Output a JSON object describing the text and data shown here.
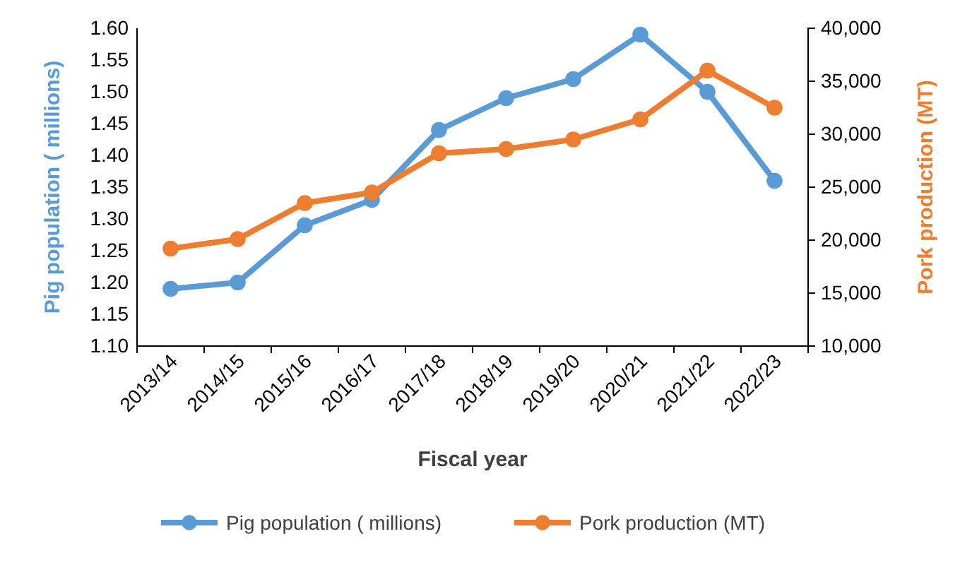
{
  "chart_data": {
    "type": "line",
    "xlabel": "Fiscal year",
    "ylabel": "Pig population ( millions)",
    "y2label": "Pork production (MT)",
    "categories": [
      "2013/14",
      "2014/15",
      "2015/16",
      "2016/17",
      "2017/18",
      "2018/19",
      "2019/20",
      "2020/21",
      "2021/22",
      "2022/23"
    ],
    "series": [
      {
        "name": "Pig population ( millions)",
        "color": "#5b9bd5",
        "values": [
          1.19,
          1.2,
          1.29,
          1.33,
          1.44,
          1.49,
          1.52,
          1.59,
          1.5,
          1.36
        ]
      },
      {
        "name": "Pork production (MT)",
        "color": "#ed7d31",
        "axis": "y2",
        "values": [
          19200,
          20100,
          23500,
          24500,
          28200,
          28600,
          29500,
          31400,
          36000,
          32500
        ]
      }
    ],
    "ylim": [
      1.1,
      1.6
    ],
    "yticks": [
      {
        "value": 1.1,
        "label": "1.10"
      },
      {
        "value": 1.15,
        "label": "1.15"
      },
      {
        "value": 1.2,
        "label": "1.20"
      },
      {
        "value": 1.25,
        "label": "1.25"
      },
      {
        "value": 1.3,
        "label": "1.30"
      },
      {
        "value": 1.35,
        "label": "1.35"
      },
      {
        "value": 1.4,
        "label": "1.40"
      },
      {
        "value": 1.45,
        "label": "1.45"
      },
      {
        "value": 1.5,
        "label": "1.50"
      },
      {
        "value": 1.55,
        "label": "1.55"
      },
      {
        "value": 1.6,
        "label": "1.60"
      }
    ],
    "y2lim": [
      10000,
      40000
    ],
    "y2ticks": [
      {
        "value": 10000,
        "label": "10,000"
      },
      {
        "value": 15000,
        "label": "15,000"
      },
      {
        "value": 20000,
        "label": "20,000"
      },
      {
        "value": 25000,
        "label": "25,000"
      },
      {
        "value": 30000,
        "label": "30,000"
      },
      {
        "value": 35000,
        "label": "35,000"
      },
      {
        "value": 40000,
        "label": "40,000"
      }
    ],
    "grid": false,
    "legend": "bottom",
    "marker": "circle",
    "line_style": "solid"
  }
}
